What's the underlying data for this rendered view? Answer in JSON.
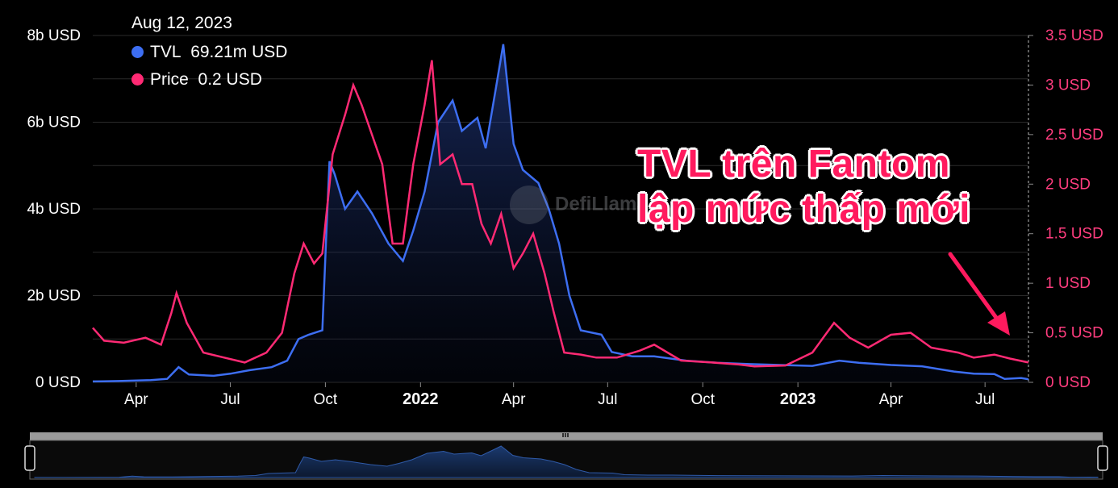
{
  "tooltip": {
    "date": "Aug 12, 2023",
    "tvl_label": "TVL",
    "tvl_value": "69.21m USD",
    "price_label": "Price",
    "price_value": "0.2 USD"
  },
  "annotation": {
    "line1": "TVL trên Fantom",
    "line2": "lập mức thấp mới"
  },
  "watermark": "DefiLlama",
  "colors": {
    "tvl": "#3d6ef2",
    "price": "#ff2a74",
    "annotation": "#ff1a5e",
    "grid": "#2a2a2a"
  },
  "chart_data": {
    "type": "line",
    "x_tick_labels": [
      "Apr",
      "Jul",
      "Oct",
      "2022",
      "Apr",
      "Jul",
      "Oct",
      "2023",
      "Apr",
      "Jul"
    ],
    "y_left": {
      "ticks": [
        "0 USD",
        "2b USD",
        "4b USD",
        "6b USD",
        "8b USD"
      ],
      "range_billion_usd": [
        0,
        8
      ]
    },
    "y_right": {
      "ticks": [
        "0 USD",
        "0.5 USD",
        "1 USD",
        "1.5 USD",
        "2 USD",
        "2.5 USD",
        "3 USD",
        "3.5 USD"
      ],
      "range_usd": [
        0,
        3.5
      ]
    },
    "x_range": [
      "2021-02-18",
      "2023-08-12"
    ],
    "series": [
      {
        "name": "TVL",
        "axis": "left",
        "unit": "billion USD",
        "points": [
          [
            "2021-02-18",
            0.02
          ],
          [
            "2021-03-15",
            0.03
          ],
          [
            "2021-04-15",
            0.05
          ],
          [
            "2021-05-01",
            0.08
          ],
          [
            "2021-05-12",
            0.35
          ],
          [
            "2021-05-22",
            0.18
          ],
          [
            "2021-06-15",
            0.15
          ],
          [
            "2021-07-01",
            0.2
          ],
          [
            "2021-07-20",
            0.28
          ],
          [
            "2021-08-10",
            0.35
          ],
          [
            "2021-08-25",
            0.5
          ],
          [
            "2021-09-05",
            1.0
          ],
          [
            "2021-09-15",
            1.1
          ],
          [
            "2021-09-28",
            1.2
          ],
          [
            "2021-10-02",
            3.5
          ],
          [
            "2021-10-05",
            5.1
          ],
          [
            "2021-10-10",
            4.8
          ],
          [
            "2021-10-20",
            4.0
          ],
          [
            "2021-11-01",
            4.4
          ],
          [
            "2021-11-15",
            3.9
          ],
          [
            "2021-12-01",
            3.2
          ],
          [
            "2021-12-15",
            2.8
          ],
          [
            "2021-12-25",
            3.5
          ],
          [
            "2022-01-05",
            4.4
          ],
          [
            "2022-01-18",
            6.0
          ],
          [
            "2022-02-01",
            6.5
          ],
          [
            "2022-02-10",
            5.8
          ],
          [
            "2022-02-25",
            6.1
          ],
          [
            "2022-03-05",
            5.4
          ],
          [
            "2022-03-15",
            6.8
          ],
          [
            "2022-03-22",
            7.8
          ],
          [
            "2022-04-01",
            5.5
          ],
          [
            "2022-04-10",
            4.9
          ],
          [
            "2022-04-25",
            4.6
          ],
          [
            "2022-05-05",
            4.0
          ],
          [
            "2022-05-15",
            3.2
          ],
          [
            "2022-05-25",
            2.0
          ],
          [
            "2022-06-05",
            1.2
          ],
          [
            "2022-06-25",
            1.1
          ],
          [
            "2022-07-05",
            0.7
          ],
          [
            "2022-07-25",
            0.6
          ],
          [
            "2022-08-15",
            0.6
          ],
          [
            "2022-09-15",
            0.5
          ],
          [
            "2022-10-15",
            0.45
          ],
          [
            "2022-11-15",
            0.42
          ],
          [
            "2022-12-15",
            0.4
          ],
          [
            "2023-01-15",
            0.38
          ],
          [
            "2023-02-10",
            0.5
          ],
          [
            "2023-03-01",
            0.45
          ],
          [
            "2023-04-01",
            0.4
          ],
          [
            "2023-05-01",
            0.37
          ],
          [
            "2023-06-01",
            0.25
          ],
          [
            "2023-06-20",
            0.2
          ],
          [
            "2023-07-10",
            0.19
          ],
          [
            "2023-07-20",
            0.08
          ],
          [
            "2023-08-05",
            0.1
          ],
          [
            "2023-08-12",
            0.07
          ]
        ]
      },
      {
        "name": "Price",
        "axis": "right",
        "unit": "USD",
        "points": [
          [
            "2021-02-18",
            0.55
          ],
          [
            "2021-03-01",
            0.42
          ],
          [
            "2021-03-20",
            0.4
          ],
          [
            "2021-04-10",
            0.45
          ],
          [
            "2021-04-25",
            0.38
          ],
          [
            "2021-05-05",
            0.7
          ],
          [
            "2021-05-10",
            0.9
          ],
          [
            "2021-05-20",
            0.6
          ],
          [
            "2021-06-05",
            0.3
          ],
          [
            "2021-06-25",
            0.25
          ],
          [
            "2021-07-15",
            0.2
          ],
          [
            "2021-08-05",
            0.3
          ],
          [
            "2021-08-20",
            0.5
          ],
          [
            "2021-09-01",
            1.1
          ],
          [
            "2021-09-10",
            1.4
          ],
          [
            "2021-09-20",
            1.2
          ],
          [
            "2021-09-28",
            1.3
          ],
          [
            "2021-10-08",
            2.3
          ],
          [
            "2021-10-20",
            2.7
          ],
          [
            "2021-10-28",
            3.0
          ],
          [
            "2021-11-05",
            2.8
          ],
          [
            "2021-11-15",
            2.5
          ],
          [
            "2021-11-25",
            2.2
          ],
          [
            "2021-12-05",
            1.4
          ],
          [
            "2021-12-15",
            1.4
          ],
          [
            "2021-12-25",
            2.2
          ],
          [
            "2022-01-05",
            2.8
          ],
          [
            "2022-01-12",
            3.25
          ],
          [
            "2022-01-20",
            2.2
          ],
          [
            "2022-02-01",
            2.3
          ],
          [
            "2022-02-10",
            2.0
          ],
          [
            "2022-02-20",
            2.0
          ],
          [
            "2022-03-01",
            1.6
          ],
          [
            "2022-03-10",
            1.4
          ],
          [
            "2022-03-20",
            1.7
          ],
          [
            "2022-04-01",
            1.15
          ],
          [
            "2022-04-10",
            1.3
          ],
          [
            "2022-04-20",
            1.5
          ],
          [
            "2022-05-01",
            1.1
          ],
          [
            "2022-05-10",
            0.7
          ],
          [
            "2022-05-20",
            0.3
          ],
          [
            "2022-06-05",
            0.28
          ],
          [
            "2022-06-20",
            0.25
          ],
          [
            "2022-07-10",
            0.25
          ],
          [
            "2022-08-01",
            0.32
          ],
          [
            "2022-08-15",
            0.38
          ],
          [
            "2022-09-10",
            0.22
          ],
          [
            "2022-10-10",
            0.2
          ],
          [
            "2022-11-05",
            0.18
          ],
          [
            "2022-11-20",
            0.16
          ],
          [
            "2022-12-20",
            0.17
          ],
          [
            "2023-01-15",
            0.3
          ],
          [
            "2023-02-05",
            0.6
          ],
          [
            "2023-02-20",
            0.45
          ],
          [
            "2023-03-10",
            0.35
          ],
          [
            "2023-04-01",
            0.48
          ],
          [
            "2023-04-20",
            0.5
          ],
          [
            "2023-05-10",
            0.35
          ],
          [
            "2023-06-05",
            0.3
          ],
          [
            "2023-06-20",
            0.25
          ],
          [
            "2023-07-10",
            0.28
          ],
          [
            "2023-07-25",
            0.24
          ],
          [
            "2023-08-12",
            0.2
          ]
        ]
      }
    ],
    "grid": true,
    "legend": "top-left"
  }
}
